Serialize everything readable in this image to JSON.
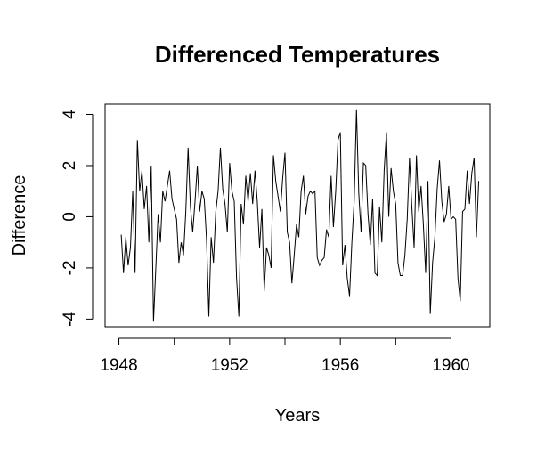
{
  "chart_data": {
    "type": "line",
    "title": "Differenced Temperatures",
    "xlabel": "Years",
    "ylabel": "Difference",
    "xlim": [
      1947.5,
      1961.4
    ],
    "ylim": [
      -4.3,
      4.4
    ],
    "x_ticks": [
      1948,
      1950,
      1952,
      1954,
      1956,
      1958,
      1960
    ],
    "x_tick_labels": [
      "1948",
      "",
      "1952",
      "",
      "1956",
      "",
      "1960"
    ],
    "y_ticks": [
      -4,
      -2,
      0,
      2,
      4
    ],
    "y_tick_labels": [
      "-4",
      "-2",
      "0",
      "2",
      "4"
    ],
    "grid": false,
    "line_color": "#000000",
    "series": [
      {
        "x_start": 1948.083,
        "x_step": 0.0833333,
        "values": [
          -0.7,
          -2.2,
          -0.8,
          -1.9,
          -1.2,
          1.0,
          -2.2,
          3.0,
          1.0,
          1.8,
          0.3,
          1.2,
          -1.0,
          2.0,
          -4.1,
          -2.0,
          0.1,
          -1.0,
          1.0,
          0.6,
          1.2,
          1.8,
          0.7,
          0.3,
          -0.1,
          -1.8,
          -1.0,
          -1.5,
          0.2,
          2.7,
          0.4,
          -0.6,
          0.6,
          2.0,
          0.2,
          1.0,
          0.7,
          -0.9,
          -3.9,
          -0.8,
          -1.8,
          0.2,
          1.0,
          2.7,
          1.1,
          0.5,
          -0.6,
          2.1,
          1.0,
          0.6,
          -2.4,
          -3.9,
          0.5,
          -0.3,
          1.6,
          0.6,
          1.7,
          0.5,
          1.8,
          0.6,
          -1.2,
          0.3,
          -2.9,
          -1.2,
          -1.5,
          -2.0,
          2.4,
          1.4,
          0.8,
          0.2,
          1.5,
          2.5,
          -0.6,
          -1.0,
          -2.6,
          -1.5,
          -0.3,
          -0.8,
          1.0,
          1.6,
          0.1,
          0.8,
          1.0,
          0.9,
          1.0,
          -1.6,
          -1.9,
          -1.7,
          -1.6,
          -0.5,
          -0.8,
          1.6,
          -0.4,
          1.0,
          3.0,
          3.3,
          -1.9,
          -1.1,
          -2.4,
          -3.1,
          -1.0,
          0.6,
          4.2,
          0.9,
          -0.6,
          2.1,
          2.0,
          0.1,
          -1.1,
          0.7,
          -2.2,
          -2.3,
          0.4,
          -1.0,
          1.8,
          3.3,
          0.0,
          1.9,
          1.0,
          0.5,
          -1.8,
          -2.3,
          -2.3,
          -1.5,
          -0.1,
          2.3,
          0.4,
          -1.2,
          2.4,
          0.2,
          1.2,
          -0.3,
          -2.2,
          1.4,
          -3.8,
          -1.8,
          -0.8,
          1.1,
          2.2,
          0.6,
          -0.2,
          0.1,
          1.2,
          -0.1,
          0.0,
          -0.1,
          -2.4,
          -3.3,
          0.2,
          0.3,
          1.8,
          0.5,
          1.7,
          2.3,
          -0.8,
          1.4
        ]
      }
    ]
  }
}
